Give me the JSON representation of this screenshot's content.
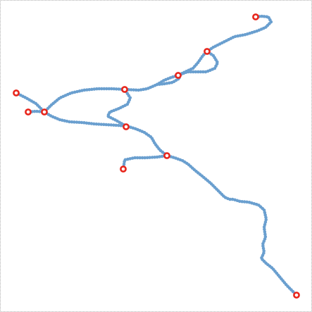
{
  "map": {
    "type": "track-network",
    "track_color": "#6a9fcf",
    "node_stroke_color": "#e8261c",
    "node_fill_color": "#ffffff",
    "border_color": "#b0b0b0",
    "background_color": "#ffffff",
    "track_count": 7,
    "node_count": 11
  }
}
